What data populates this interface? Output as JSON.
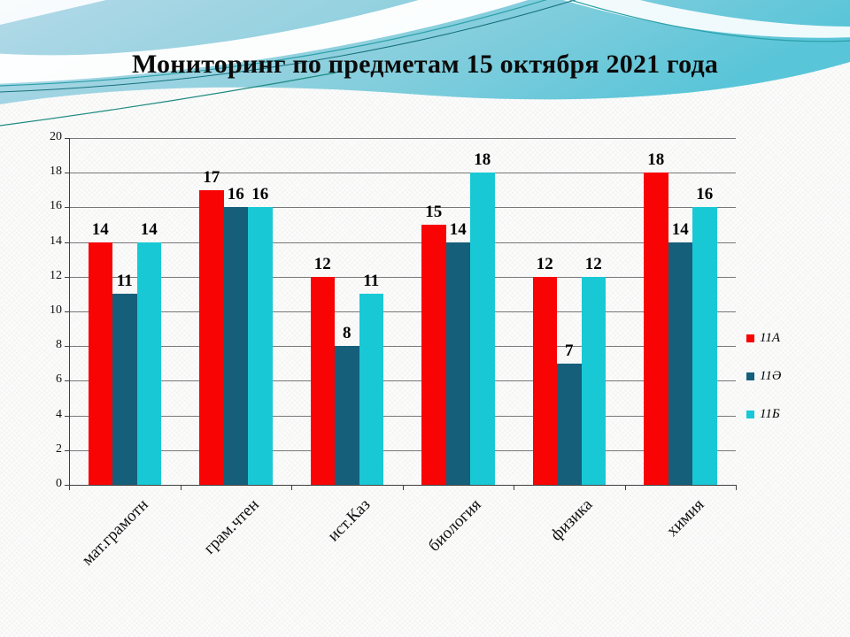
{
  "slide": {
    "title": "Мониторинг по предметам 15 октября 2021 года"
  },
  "chart_data": {
    "type": "bar",
    "title": "Мониторинг по предметам 15 октября 2021 года",
    "categories": [
      "мат.грамотн",
      "грам.чтен",
      "ист.Каз",
      "биология",
      "физика",
      "химия"
    ],
    "series": [
      {
        "name": "11А",
        "color": "#f80404",
        "values": [
          14,
          17,
          12,
          15,
          12,
          18
        ]
      },
      {
        "name": "11Ә",
        "color": "#155f7b",
        "values": [
          11,
          16,
          8,
          14,
          7,
          14
        ]
      },
      {
        "name": "11Б",
        "color": "#18c9d5",
        "values": [
          14,
          16,
          11,
          18,
          12,
          16
        ]
      }
    ],
    "ylim": [
      0,
      20
    ],
    "ytick_step": 2,
    "grid": true,
    "legend_position": "right",
    "data_labels": true,
    "axis_color": "#404040",
    "grid_color": "#787878"
  }
}
